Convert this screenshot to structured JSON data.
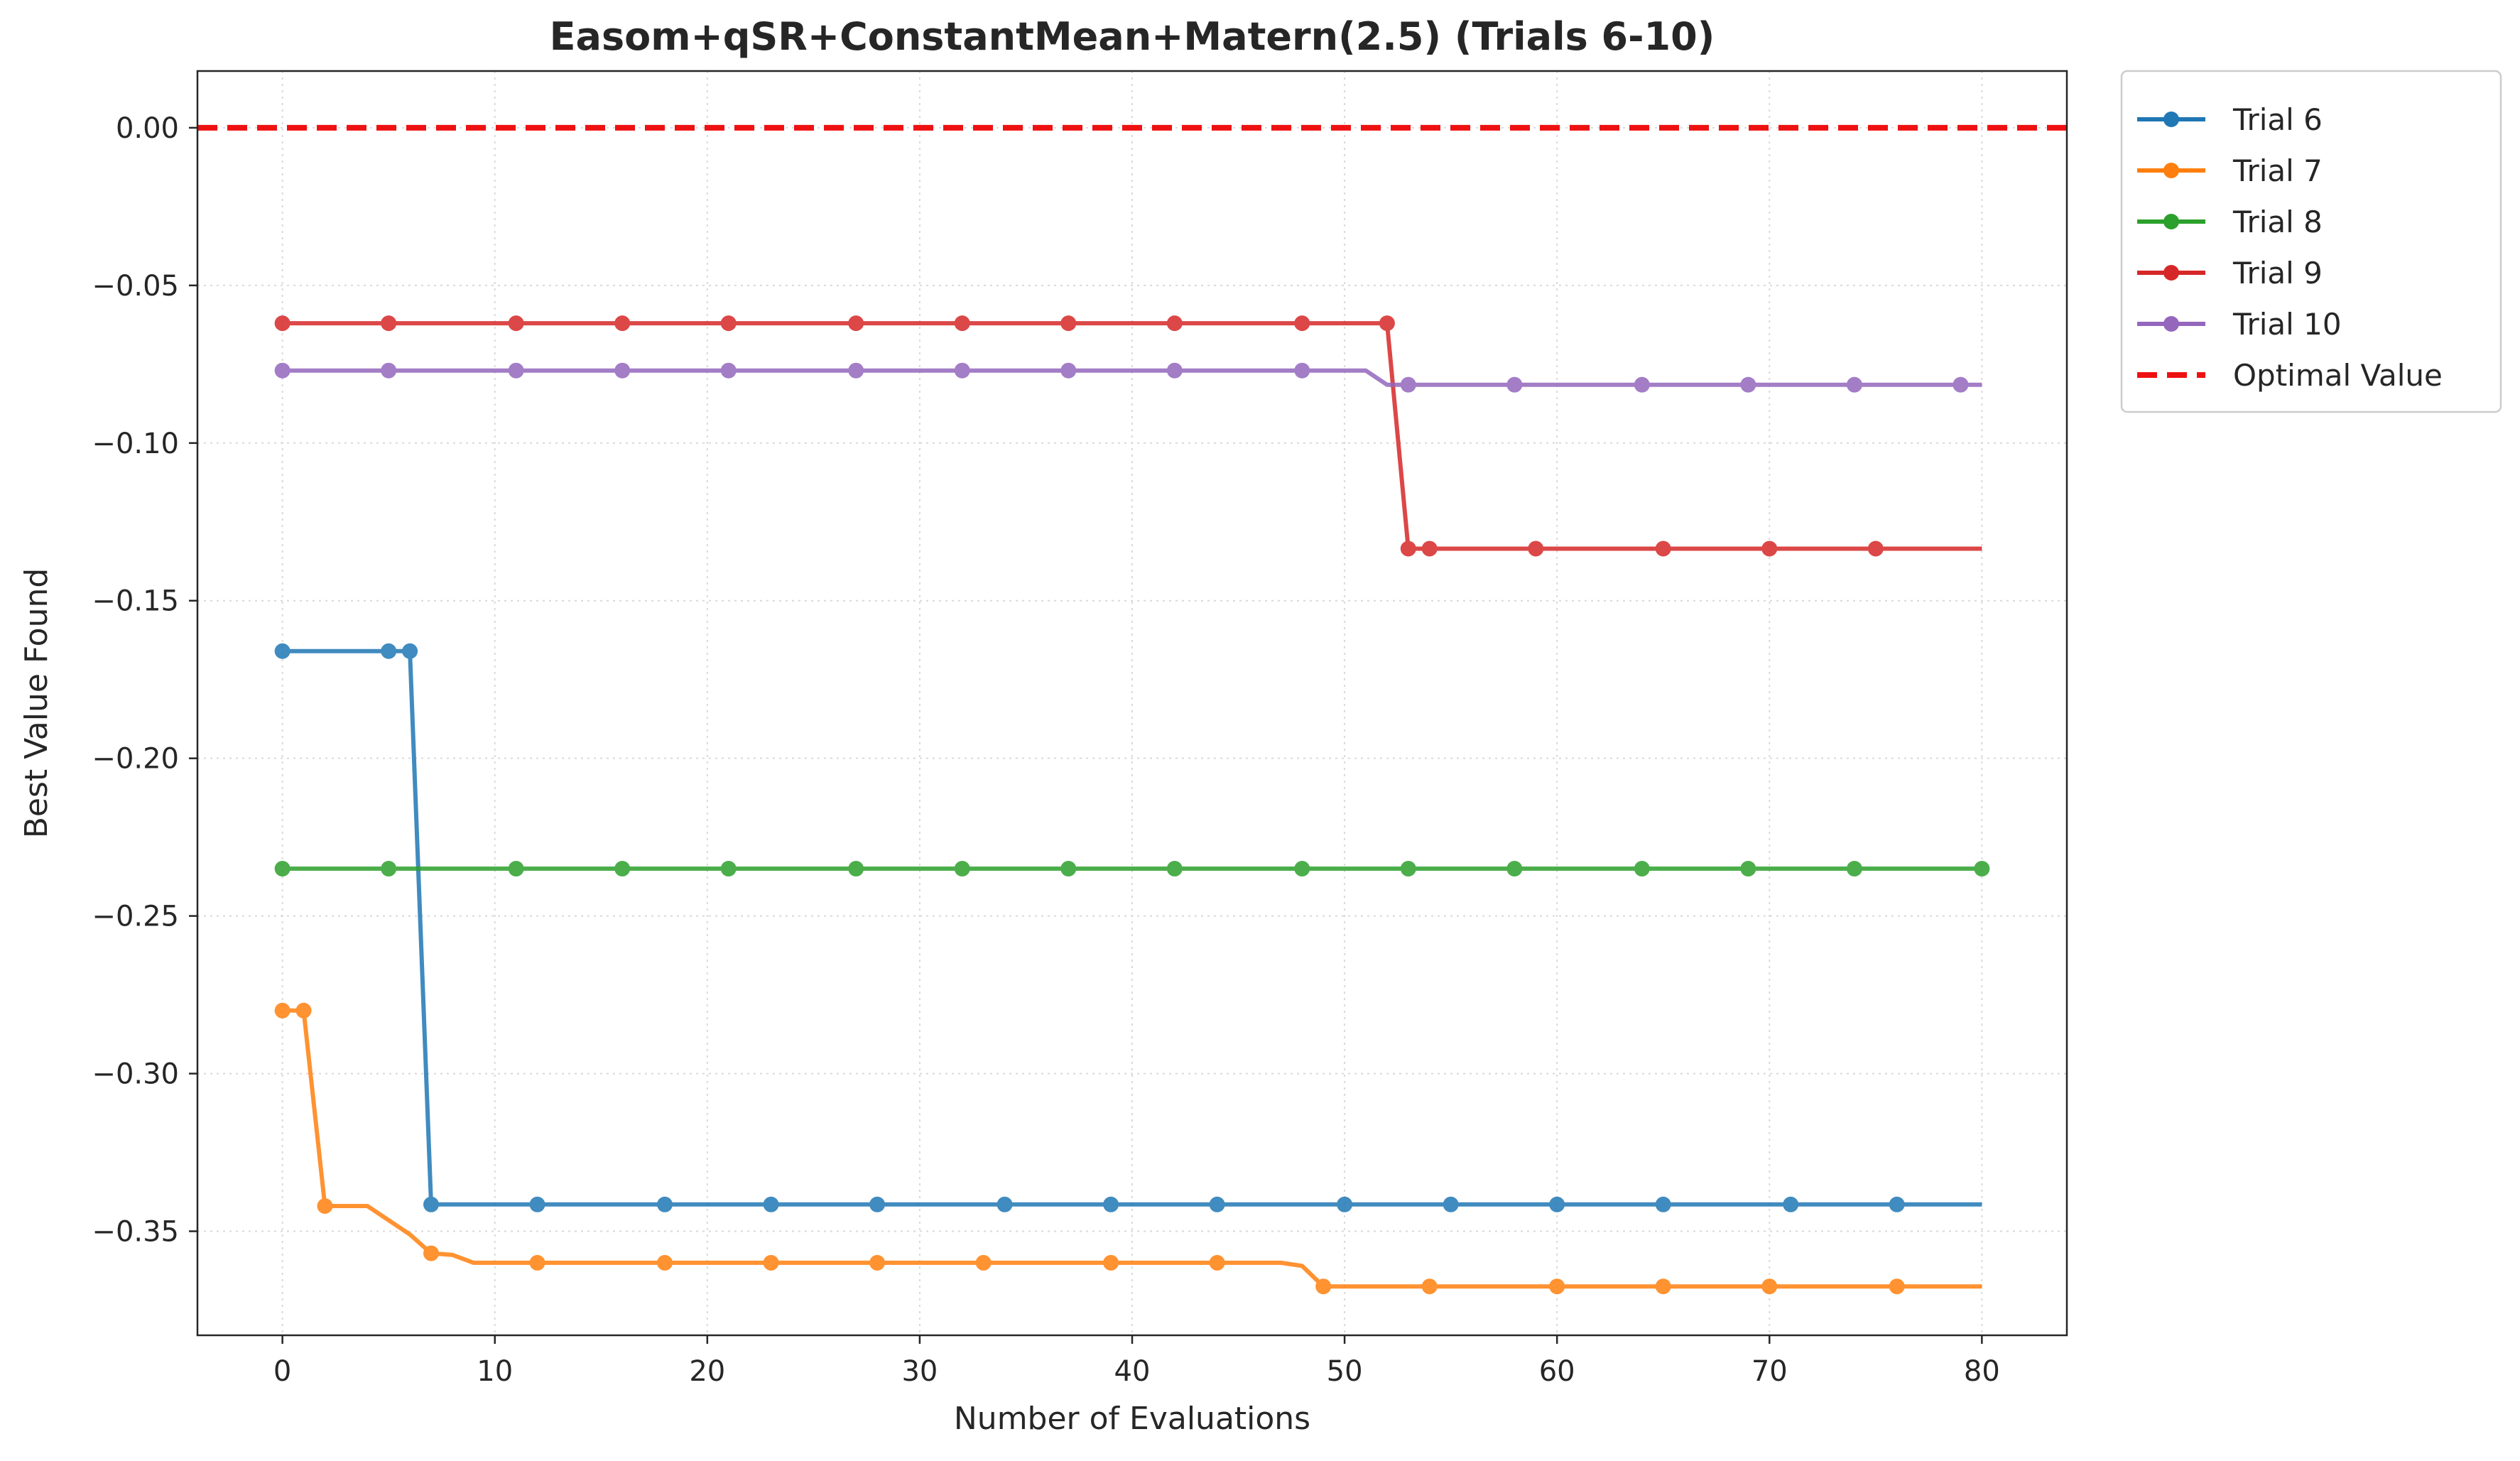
{
  "chart_data": {
    "type": "line",
    "title": "Easom+qSR+ConstantMean+Matern(2.5) (Trials 6-10)",
    "xlabel": "Number of Evaluations",
    "ylabel": "Best Value Found",
    "xlim": [
      -4,
      84
    ],
    "ylim": [
      -0.383,
      0.018
    ],
    "xticks": [
      0,
      10,
      20,
      30,
      40,
      50,
      60,
      70,
      80
    ],
    "yticks": [
      0.0,
      -0.05,
      -0.1,
      -0.15,
      -0.2,
      -0.25,
      -0.3,
      -0.35
    ],
    "xtick_labels": [
      "0",
      "10",
      "20",
      "30",
      "40",
      "50",
      "60",
      "70",
      "80"
    ],
    "ytick_labels": [
      "0.00",
      "−0.05",
      "−0.10",
      "−0.15",
      "−0.20",
      "−0.25",
      "−0.30",
      "−0.35"
    ],
    "grid": true,
    "legend_position": "outside-top-right",
    "series": [
      {
        "name": "Trial 6",
        "color": "#1f77b4",
        "points": [
          [
            0,
            -0.166
          ],
          [
            5,
            -0.166
          ],
          [
            6,
            -0.166
          ],
          [
            7,
            -0.3415
          ],
          [
            80,
            -0.3415
          ]
        ],
        "markers": [
          0,
          5,
          6,
          7,
          12,
          18,
          23,
          28,
          34,
          39,
          44,
          50,
          55,
          60,
          65,
          71,
          76
        ]
      },
      {
        "name": "Trial 7",
        "color": "#ff7f0e",
        "points": [
          [
            0,
            -0.28
          ],
          [
            1,
            -0.28
          ],
          [
            2,
            -0.342
          ],
          [
            4,
            -0.342
          ],
          [
            6,
            -0.351
          ],
          [
            7,
            -0.357
          ],
          [
            8,
            -0.3575
          ],
          [
            9,
            -0.36
          ],
          [
            47,
            -0.36
          ],
          [
            48,
            -0.361
          ],
          [
            49,
            -0.3675
          ],
          [
            80,
            -0.3675
          ]
        ],
        "markers": [
          0,
          1,
          2,
          7,
          12,
          18,
          23,
          28,
          33,
          39,
          44,
          49,
          54,
          60,
          65,
          70,
          76
        ]
      },
      {
        "name": "Trial 8",
        "color": "#2ca02c",
        "points": [
          [
            0,
            -0.235
          ],
          [
            80,
            -0.235
          ]
        ],
        "markers": [
          0,
          5,
          11,
          16,
          21,
          27,
          32,
          37,
          42,
          48,
          53,
          58,
          64,
          69,
          74,
          80
        ]
      },
      {
        "name": "Trial 9",
        "color": "#d62728",
        "points": [
          [
            0,
            -0.062
          ],
          [
            52,
            -0.062
          ],
          [
            53,
            -0.1335
          ],
          [
            80,
            -0.1335
          ]
        ],
        "markers": [
          0,
          5,
          11,
          16,
          21,
          27,
          32,
          37,
          42,
          48,
          52,
          53,
          54,
          59,
          65,
          70,
          75
        ]
      },
      {
        "name": "Trial 10",
        "color": "#9467bd",
        "points": [
          [
            0,
            -0.077
          ],
          [
            51,
            -0.077
          ],
          [
            52,
            -0.0815
          ],
          [
            80,
            -0.0815
          ]
        ],
        "markers": [
          0,
          5,
          11,
          16,
          21,
          27,
          32,
          37,
          42,
          48,
          53,
          58,
          64,
          69,
          74,
          79
        ]
      }
    ],
    "reference_line": {
      "name": "Optimal Value",
      "y": 0.0,
      "color": "#ee1111",
      "style": "dashed"
    }
  }
}
